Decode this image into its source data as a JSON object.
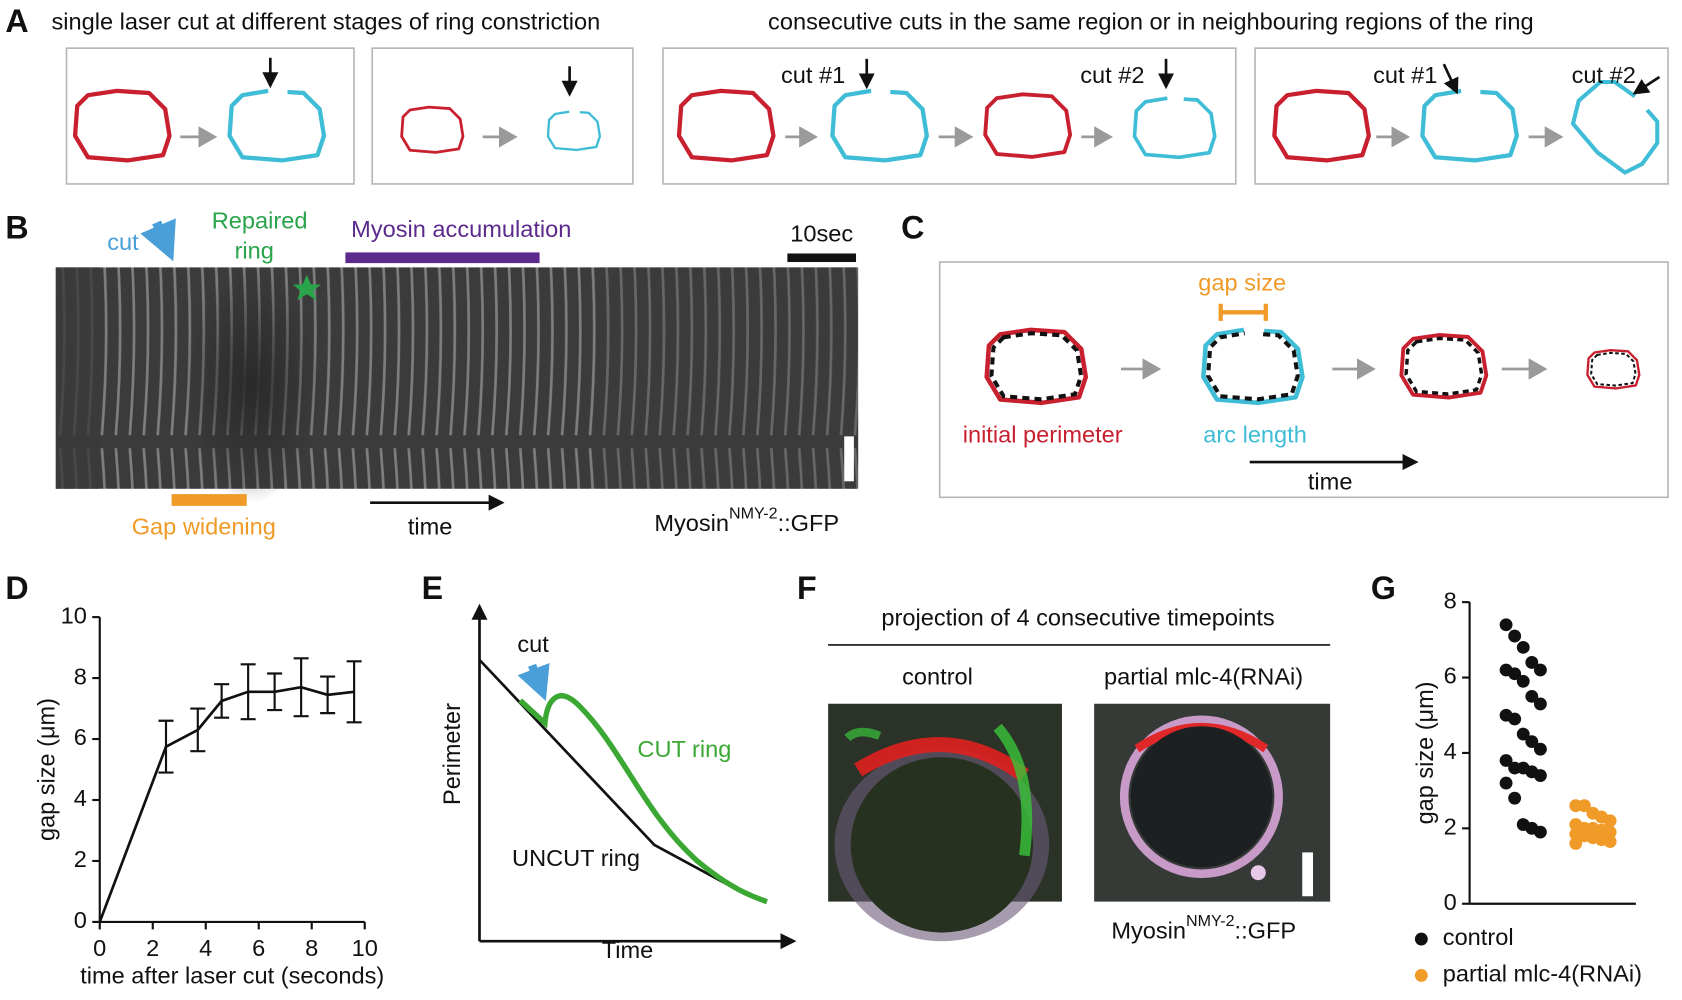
{
  "panel_labels": [
    "A",
    "B",
    "C",
    "D",
    "E",
    "F",
    "G"
  ],
  "panel_a": {
    "left_title": "single laser cut at different stages of ring constriction",
    "right_title": "consecutive cuts in the same region or in neighbouring regions of the ring",
    "cut_labels": [
      "cut #1",
      "cut #2",
      "cut #1",
      "cut #2"
    ]
  },
  "panel_b": {
    "cut": "cut",
    "repaired": [
      "Repaired",
      "ring"
    ],
    "myosin_accumulation": "Myosin accumulation",
    "scale": "10sec",
    "gap_widening": "Gap widening",
    "time": "time",
    "marker": {
      "base": "Myosin",
      "sup": "NMY-2",
      "suffix": "::GFP"
    }
  },
  "panel_c": {
    "gap_size": "gap size",
    "initial_perimeter": "initial perimeter",
    "arc_length": "arc length",
    "time": "time"
  },
  "panel_e": {
    "cut": "cut",
    "cut_ring": "CUT ring",
    "uncut_ring": "UNCUT ring",
    "y_label": "Perimeter",
    "x_label": "Time"
  },
  "panel_f": {
    "title": "projection of 4 consecutive timepoints",
    "conditions": [
      "control",
      "partial mlc-4(RNAi)"
    ],
    "marker": {
      "base": "Myosin",
      "sup": "NMY-2",
      "suffix": "::GFP"
    }
  },
  "chart_data": [
    {
      "type": "line",
      "x_label": "time after laser cut (seconds)",
      "y_label": "gap size (μm)",
      "x": [
        0,
        2.5,
        3.7,
        4.6,
        5.6,
        6.6,
        7.6,
        8.6,
        9.6
      ],
      "series": [
        {
          "color": "#111111",
          "values": [
            0,
            5.75,
            6.3,
            7.25,
            7.55,
            7.55,
            7.7,
            7.45,
            7.55
          ],
          "errors": [
            null,
            0.85,
            0.7,
            0.55,
            0.9,
            0.6,
            0.95,
            0.6,
            1.0
          ]
        }
      ],
      "xlim": [
        0,
        10
      ],
      "ylim": [
        0,
        10
      ],
      "xticks": [
        0,
        2,
        4,
        6,
        8,
        10
      ],
      "yticks": [
        0,
        2,
        4,
        6,
        8,
        10
      ]
    },
    {
      "type": "strip",
      "y_label": "gap size (μm)",
      "series": [
        {
          "name": "control",
          "color": "#111111",
          "values": [
            7.4,
            7.1,
            6.8,
            6.4,
            6.2,
            6.2,
            6.1,
            5.9,
            5.5,
            5.3,
            5.0,
            4.9,
            4.5,
            4.3,
            4.1,
            3.8,
            3.6,
            3.6,
            3.5,
            3.4,
            3.2,
            2.8,
            2.1,
            2.0,
            1.9
          ]
        },
        {
          "name": "partial mlc-4(RNAi)",
          "color": "#f09a28",
          "values": [
            2.6,
            2.6,
            2.4,
            2.3,
            2.2,
            2.1,
            2.0,
            2.0,
            1.95,
            1.9,
            1.85,
            1.8,
            1.75,
            1.7,
            1.65,
            1.6
          ]
        }
      ],
      "ylim": [
        0,
        8
      ],
      "yticks": [
        0,
        2,
        4,
        6,
        8
      ]
    }
  ]
}
